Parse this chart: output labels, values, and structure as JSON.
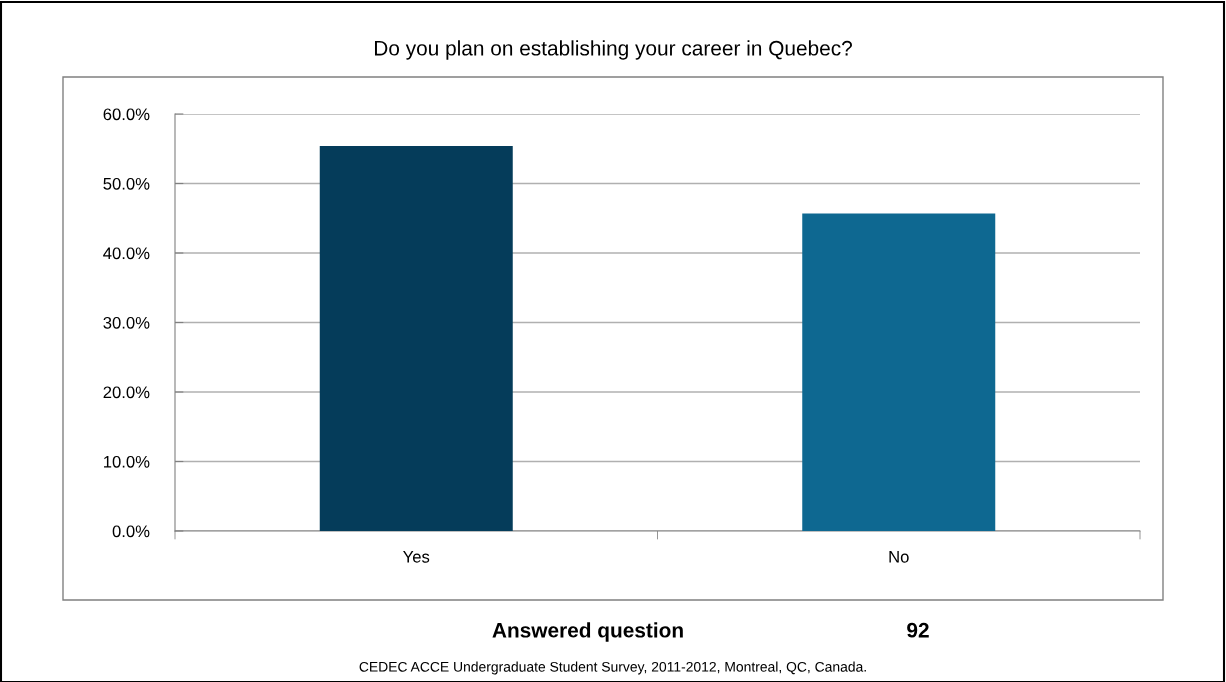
{
  "chart_data": {
    "type": "bar",
    "title": "Do you plan on establishing your career in Quebec?",
    "categories": [
      "Yes",
      "No"
    ],
    "values": [
      55.4,
      45.7
    ],
    "colors": [
      "#053c5a",
      "#0e6891"
    ],
    "ylim": [
      0,
      60
    ],
    "yticks": [
      {
        "value": 0,
        "label": "0.0%"
      },
      {
        "value": 10,
        "label": "10.0%"
      },
      {
        "value": 20,
        "label": "20.0%"
      },
      {
        "value": 30,
        "label": "30.0%"
      },
      {
        "value": 40,
        "label": "40.0%"
      },
      {
        "value": 50,
        "label": "50.0%"
      },
      {
        "value": 60,
        "label": "60.0%"
      }
    ],
    "grid": "y",
    "legend": false,
    "annotations": [
      "Answered question",
      "92",
      "CEDEC ACCE Undergraduate Student Survey, 2011-2012, Montreal, QC, Canada."
    ]
  }
}
